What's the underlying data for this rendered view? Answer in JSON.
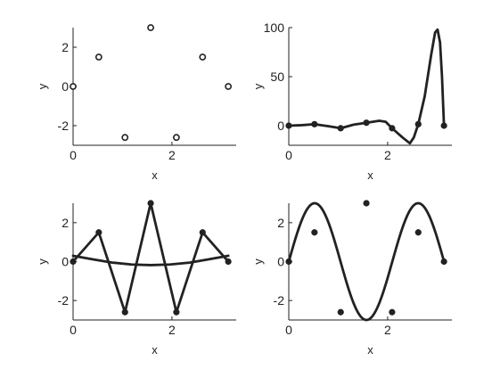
{
  "colors": {
    "ink": "#222222",
    "background": "#ffffff"
  },
  "chart_data": [
    {
      "type": "scatter",
      "panel": "top-left",
      "xlabel": "x",
      "ylabel": "y",
      "xlim": [
        0,
        3.3
      ],
      "ylim": [
        -3,
        3
      ],
      "xticks": [
        0,
        2
      ],
      "yticks": [
        -2,
        0,
        2
      ],
      "grid": false,
      "series": [
        {
          "style": "markers",
          "marker": "open-circle",
          "points": [
            [
              0,
              0
            ],
            [
              0.52,
              1.5
            ],
            [
              1.05,
              -2.6
            ],
            [
              1.57,
              3.0
            ],
            [
              2.09,
              -2.6
            ],
            [
              2.62,
              1.5
            ],
            [
              3.14,
              0
            ]
          ]
        }
      ]
    },
    {
      "type": "line",
      "panel": "top-right",
      "xlabel": "x",
      "ylabel": "y",
      "xlim": [
        0,
        3.3
      ],
      "ylim": [
        -20,
        100
      ],
      "xticks": [
        0,
        2
      ],
      "yticks": [
        0,
        50,
        100
      ],
      "grid": false,
      "series": [
        {
          "style": "markers",
          "marker": "filled-circle",
          "points": [
            [
              0,
              0
            ],
            [
              0.52,
              1.5
            ],
            [
              1.05,
              -2.6
            ],
            [
              1.57,
              3.0
            ],
            [
              2.09,
              -2.6
            ],
            [
              2.62,
              1.5
            ],
            [
              3.14,
              0
            ]
          ]
        },
        {
          "style": "curve",
          "points": [
            [
              0,
              0
            ],
            [
              0.26,
              0.5
            ],
            [
              0.52,
              1.5
            ],
            [
              0.79,
              -0.5
            ],
            [
              1.05,
              -2.6
            ],
            [
              1.31,
              1.0
            ],
            [
              1.57,
              3.0
            ],
            [
              1.83,
              5.0
            ],
            [
              1.96,
              4.0
            ],
            [
              2.09,
              -2.6
            ],
            [
              2.3,
              -12.0
            ],
            [
              2.45,
              -18.0
            ],
            [
              2.53,
              -12.0
            ],
            [
              2.62,
              1.5
            ],
            [
              2.75,
              30.0
            ],
            [
              2.88,
              72.0
            ],
            [
              2.96,
              95.0
            ],
            [
              3.01,
              98.0
            ],
            [
              3.06,
              85.0
            ],
            [
              3.1,
              50.0
            ],
            [
              3.14,
              0
            ]
          ]
        }
      ]
    },
    {
      "type": "line",
      "panel": "bottom-left",
      "xlabel": "x",
      "ylabel": "y",
      "xlim": [
        0,
        3.3
      ],
      "ylim": [
        -3,
        3
      ],
      "xticks": [
        0,
        2
      ],
      "yticks": [
        -2,
        0,
        2
      ],
      "grid": false,
      "series": [
        {
          "style": "line-markers",
          "marker": "filled-circle",
          "points": [
            [
              0,
              0
            ],
            [
              0.52,
              1.5
            ],
            [
              1.05,
              -2.6
            ],
            [
              1.57,
              3.0
            ],
            [
              2.09,
              -2.6
            ],
            [
              2.62,
              1.5
            ],
            [
              3.14,
              0
            ]
          ]
        },
        {
          "style": "curve",
          "points": [
            [
              0,
              0.3
            ],
            [
              0.39,
              0.12
            ],
            [
              0.79,
              -0.05
            ],
            [
              1.18,
              -0.15
            ],
            [
              1.57,
              -0.18
            ],
            [
              1.96,
              -0.15
            ],
            [
              2.36,
              -0.05
            ],
            [
              2.75,
              0.12
            ],
            [
              3.14,
              0.3
            ]
          ]
        }
      ]
    },
    {
      "type": "line",
      "panel": "bottom-right",
      "xlabel": "x",
      "ylabel": "y",
      "xlim": [
        0,
        3.3
      ],
      "ylim": [
        -3,
        3
      ],
      "xticks": [
        0,
        2
      ],
      "yticks": [
        -2,
        0,
        2
      ],
      "grid": false,
      "series": [
        {
          "style": "markers",
          "marker": "filled-circle",
          "points": [
            [
              0,
              0
            ],
            [
              0.52,
              1.5
            ],
            [
              1.05,
              -2.6
            ],
            [
              1.57,
              3.0
            ],
            [
              2.09,
              -2.6
            ],
            [
              2.62,
              1.5
            ],
            [
              3.14,
              0
            ]
          ]
        },
        {
          "style": "curve",
          "function": "3*sin(3*x)",
          "xrange": [
            0,
            3.14
          ]
        }
      ]
    }
  ]
}
